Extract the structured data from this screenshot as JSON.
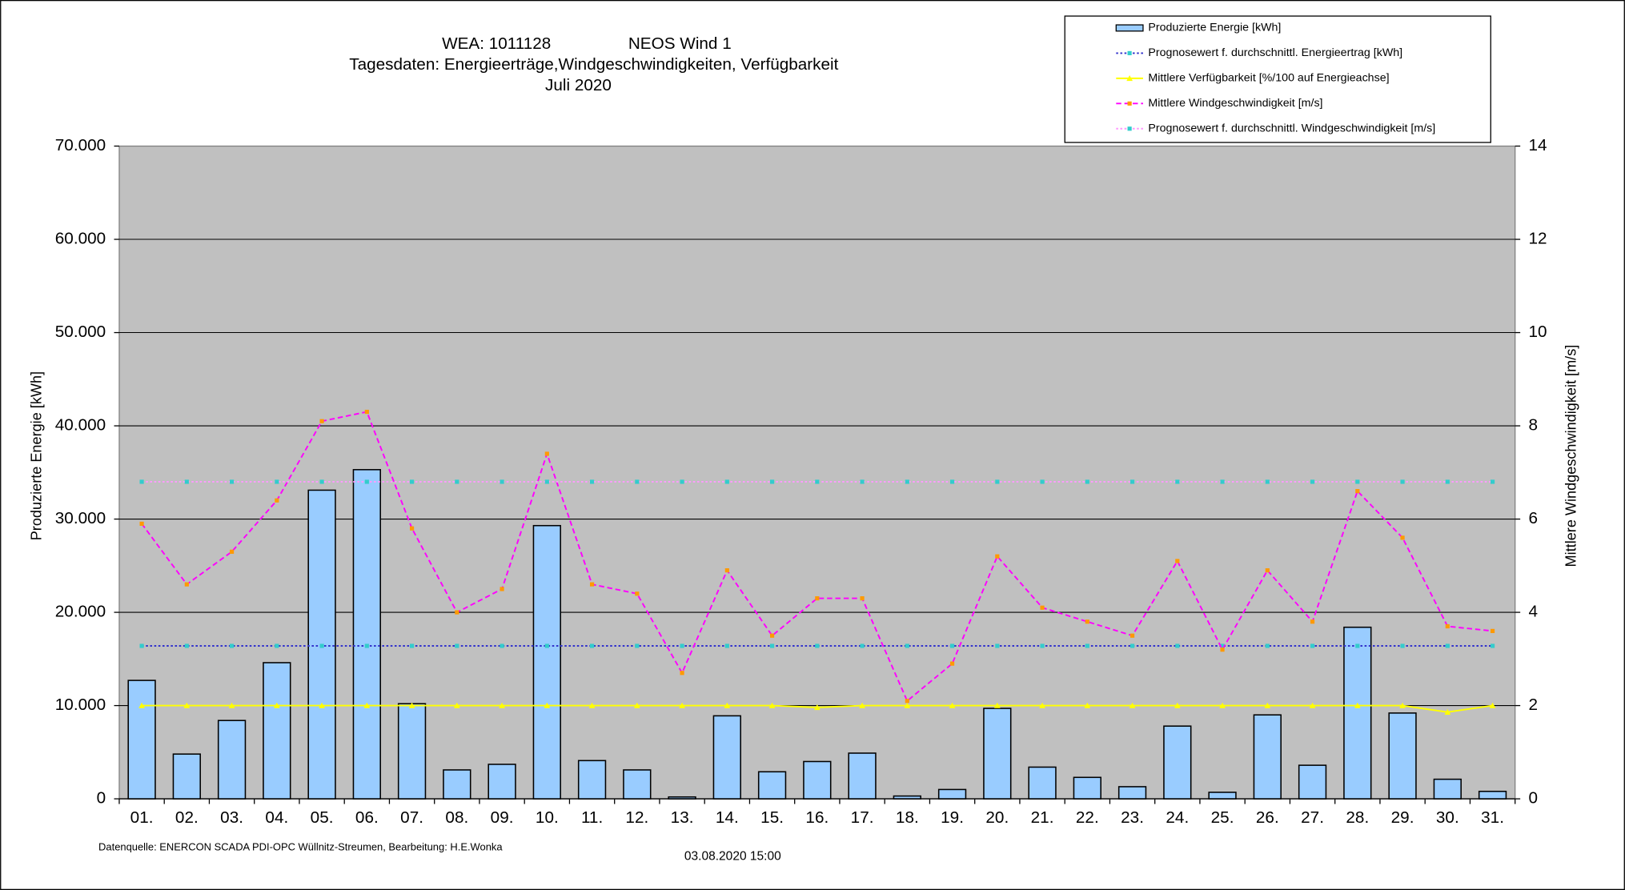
{
  "chart_data": {
    "type": "bar",
    "title_lines": [
      "WEA: 1011128",
      "NEOS Wind 1",
      "Tagesdaten:  Energieerträge,Windgeschwindigkeiten,  Verfügbarkeit",
      "Juli 2020"
    ],
    "ylabel": "Produzierte Energie [kWh]",
    "y2label": "Mittlere Windgeschwindigkeit [m/s]",
    "footer_source": "Datenquelle: ENERCON SCADA PDI-OPC Wüllnitz-Streumen,   Bearbeitung: H.E.Wonka",
    "footer_date": "03.08.2020 15:00",
    "categories": [
      "01.",
      "02.",
      "03.",
      "04.",
      "05.",
      "06.",
      "07.",
      "08.",
      "09.",
      "10.",
      "11.",
      "12.",
      "13.",
      "14.",
      "15.",
      "16.",
      "17.",
      "18.",
      "19.",
      "20.",
      "21.",
      "22.",
      "23.",
      "24.",
      "25.",
      "26.",
      "27.",
      "28.",
      "29.",
      "30.",
      "31."
    ],
    "ylim": [
      0,
      70000
    ],
    "yticks": [
      0,
      {
        "value": 10000,
        "label": "10.000"
      },
      {
        "value": 20000,
        "label": "20.000"
      },
      {
        "value": 30000,
        "label": "30.000"
      },
      {
        "value": 40000,
        "label": "40.000"
      },
      {
        "value": 50000,
        "label": "50.000"
      },
      {
        "value": 60000,
        "label": "60.000"
      },
      {
        "value": 70000,
        "label": "70.000"
      }
    ],
    "y2lim": [
      0,
      14
    ],
    "y2ticks": [
      0,
      2,
      4,
      6,
      8,
      10,
      12,
      14
    ],
    "grid": true,
    "legend": "top-right",
    "series": [
      {
        "name": "Produzierte Energie [kWh]",
        "type": "bar",
        "color": "#99ccff",
        "values": [
          12700,
          4800,
          8400,
          14600,
          33100,
          35300,
          10200,
          3100,
          3700,
          29300,
          4100,
          3100,
          200,
          8900,
          2900,
          4000,
          4900,
          300,
          1000,
          9700,
          3400,
          2300,
          1300,
          7800,
          700,
          9000,
          3600,
          18400,
          9200,
          2100,
          800
        ]
      },
      {
        "name": "Prognosewert f. durchschnittl. Energieertrag  [kWh]",
        "type": "line",
        "color": "#3333cc",
        "marker_color": "#33cccc",
        "dash": "dotted",
        "values": [
          16400,
          16400,
          16400,
          16400,
          16400,
          16400,
          16400,
          16400,
          16400,
          16400,
          16400,
          16400,
          16400,
          16400,
          16400,
          16400,
          16400,
          16400,
          16400,
          16400,
          16400,
          16400,
          16400,
          16400,
          16400,
          16400,
          16400,
          16400,
          16400,
          16400,
          16400
        ]
      },
      {
        "name": "Mittlere Verfügbarkeit [%/100 auf Energieachse]",
        "type": "line",
        "color": "#ffff00",
        "marker_color": "#ffff00",
        "dash": "solid",
        "values": [
          10000,
          10000,
          10000,
          10000,
          10000,
          10000,
          10000,
          10000,
          10000,
          10000,
          10000,
          10000,
          10000,
          10000,
          10000,
          9800,
          10000,
          10000,
          10000,
          10000,
          10000,
          10000,
          10000,
          10000,
          10000,
          10000,
          10000,
          10000,
          10000,
          9300,
          10000
        ]
      },
      {
        "name": "Mittlere Windgeschwindigkeit [m/s]",
        "type": "line",
        "axis": "y2",
        "color": "#ff00ff",
        "marker_color": "#ff9900",
        "dash": "dashed",
        "values": [
          5.9,
          4.6,
          5.3,
          6.4,
          8.1,
          8.3,
          5.8,
          4.0,
          4.5,
          7.4,
          4.6,
          4.4,
          2.7,
          4.9,
          3.5,
          4.3,
          4.3,
          2.1,
          2.9,
          5.2,
          4.1,
          3.8,
          3.5,
          5.1,
          3.2,
          4.9,
          3.8,
          6.6,
          5.6,
          3.7,
          3.6
        ]
      },
      {
        "name": "Prognosewert f. durchschnittl. Windgeschwindigkeit [m/s]",
        "type": "line",
        "axis": "y2",
        "color": "#ff99ff",
        "marker_color": "#33cccc",
        "dash": "dotted",
        "values": [
          6.8,
          6.8,
          6.8,
          6.8,
          6.8,
          6.8,
          6.8,
          6.8,
          6.8,
          6.8,
          6.8,
          6.8,
          6.8,
          6.8,
          6.8,
          6.8,
          6.8,
          6.8,
          6.8,
          6.8,
          6.8,
          6.8,
          6.8,
          6.8,
          6.8,
          6.8,
          6.8,
          6.8,
          6.8,
          6.8,
          6.8
        ]
      }
    ]
  }
}
